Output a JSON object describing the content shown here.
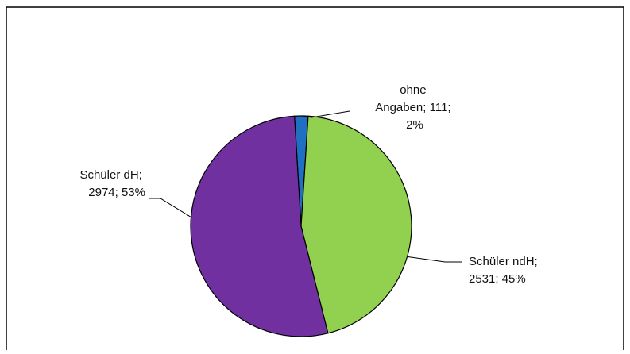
{
  "chart_data": {
    "type": "pie",
    "title": "",
    "slices": [
      {
        "name": "ohne Angaben",
        "value": 111,
        "percent": 2,
        "color": "#1f6fc2"
      },
      {
        "name": "Schüler ndH",
        "value": 2531,
        "percent": 45,
        "color": "#92d050"
      },
      {
        "name": "Schüler dH",
        "value": 2974,
        "percent": 53,
        "color": "#7030a0"
      }
    ],
    "labels": [
      {
        "lines": [
          "ohne",
          "Angaben; 111;",
          "2%"
        ]
      },
      {
        "lines": [
          "Schüler ndH;",
          "2531; 45%"
        ]
      },
      {
        "lines": [
          "Schüler dH;",
          "2974; 53%"
        ]
      }
    ],
    "legend": "none"
  }
}
